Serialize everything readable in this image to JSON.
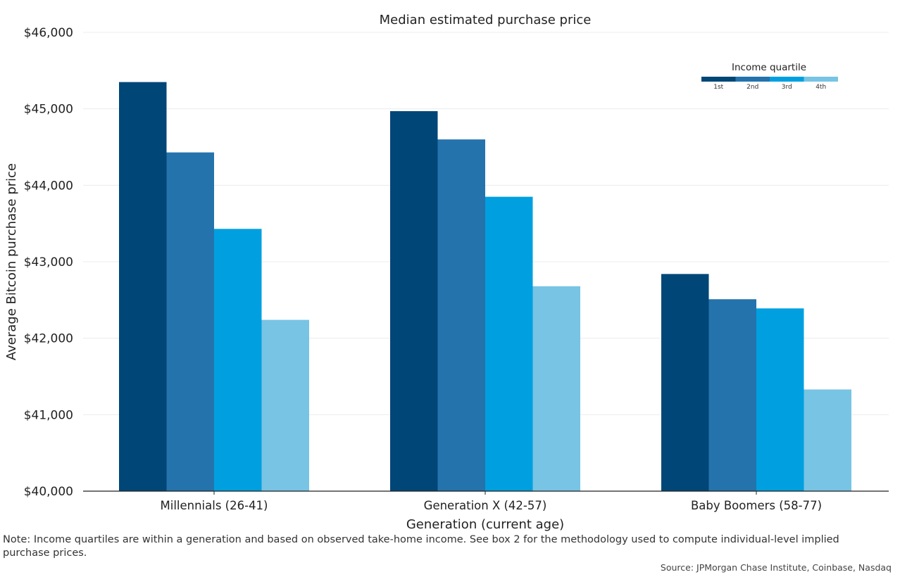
{
  "chart_data": {
    "type": "bar",
    "title": "Median estimated purchase price",
    "xlabel": "Generation (current age)",
    "ylabel": "Average Bitcoin purchase price",
    "ylim": [
      40000,
      46000
    ],
    "yticks": [
      40000,
      41000,
      42000,
      43000,
      44000,
      45000,
      46000
    ],
    "ytick_labels": [
      "$40,000",
      "$41,000",
      "$42,000",
      "$43,000",
      "$44,000",
      "$45,000",
      "$46,000"
    ],
    "grid": true,
    "categories": [
      "Millennials (26-41)",
      "Generation X (42-57)",
      "Baby Boomers (58-77)"
    ],
    "legend": {
      "title": "Income quartile",
      "placement": "top-right"
    },
    "series": [
      {
        "name": "1st",
        "color": "#004677",
        "values": [
          45350,
          44970,
          42840
        ]
      },
      {
        "name": "2nd",
        "color": "#2473ad",
        "values": [
          44430,
          44600,
          42510
        ]
      },
      {
        "name": "3rd",
        "color": "#00a0e0",
        "values": [
          43430,
          43850,
          42390
        ]
      },
      {
        "name": "4th",
        "color": "#78c4e4",
        "values": [
          42240,
          42680,
          41330
        ]
      }
    ]
  },
  "footer": {
    "note": "Note: Income quartiles are within a generation and based on observed take-home income. See box 2 for the methodology used to compute individual-level implied purchase prices.",
    "source": "Source: JPMorgan Chase Institute, Coinbase, Nasdaq"
  }
}
